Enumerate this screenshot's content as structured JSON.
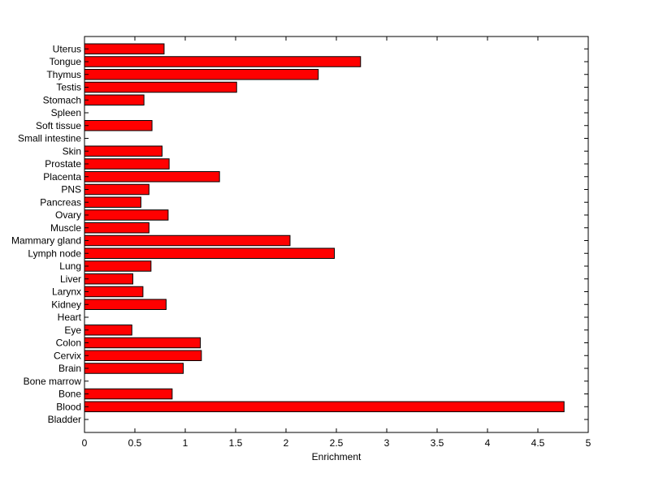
{
  "chart_data": {
    "type": "bar",
    "orientation": "horizontal",
    "title": "",
    "xlabel": "Enrichment",
    "ylabel": "",
    "xlim": [
      0,
      5
    ],
    "xticks": [
      "0",
      "0.5",
      "1",
      "1.5",
      "2",
      "2.5",
      "3",
      "3.5",
      "4",
      "4.5",
      "5"
    ],
    "grid": false,
    "bar_color": "#ff0000",
    "categories": [
      "Bladder",
      "Blood",
      "Bone",
      "Bone marrow",
      "Brain",
      "Cervix",
      "Colon",
      "Eye",
      "Heart",
      "Kidney",
      "Larynx",
      "Liver",
      "Lung",
      "Lymph node",
      "Mammary gland",
      "Muscle",
      "Ovary",
      "Pancreas",
      "PNS",
      "Placenta",
      "Prostate",
      "Skin",
      "Small intestine",
      "Soft tissue",
      "Spleen",
      "Stomach",
      "Testis",
      "Thymus",
      "Tongue",
      "Uterus"
    ],
    "values": [
      0,
      4.76,
      0.87,
      0,
      0.98,
      1.16,
      1.15,
      0.47,
      0,
      0.81,
      0.58,
      0.48,
      0.66,
      2.48,
      2.04,
      0.64,
      0.83,
      0.56,
      0.64,
      1.34,
      0.84,
      0.77,
      0,
      0.67,
      0,
      0.59,
      1.51,
      2.32,
      2.74,
      0.79
    ]
  }
}
